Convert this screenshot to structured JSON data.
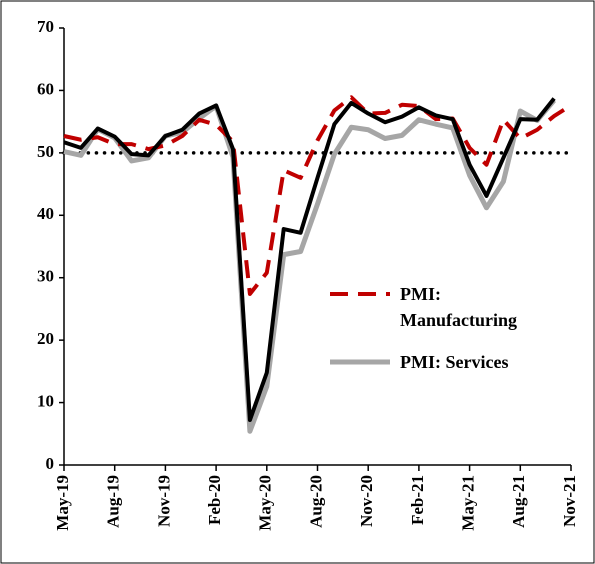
{
  "chart_data": {
    "type": "line",
    "categories": [
      "May-19",
      null,
      null,
      "Aug-19",
      null,
      null,
      "Nov-19",
      null,
      null,
      "Feb-20",
      null,
      null,
      "May-20",
      null,
      null,
      "Aug-20",
      null,
      null,
      "Nov-20",
      null,
      null,
      "Feb-21",
      null,
      null,
      "May-21",
      null,
      null,
      "Aug-21",
      null,
      null,
      "Nov-21"
    ],
    "series": [
      {
        "color": "#000000",
        "values": [
          51.7,
          50.8,
          53.9,
          52.6,
          49.8,
          49.6,
          52.7,
          53.7,
          56.3,
          57.6,
          50.6,
          7.2,
          14.8,
          37.8,
          37.2,
          46,
          54.6,
          58,
          56.3,
          54.9,
          55.8,
          57.3,
          56,
          55.4,
          48.1,
          43.1,
          49.2,
          55.4,
          55.3,
          58.7,
          null
        ]
      },
      {
        "name": "PMI: Manufacturing",
        "color": "#c00000",
        "dashed": true,
        "values": [
          52.7,
          52.1,
          52.5,
          51.4,
          51.4,
          50.6,
          51.2,
          52.7,
          55.3,
          54.5,
          51.8,
          27.4,
          30.8,
          47.2,
          46,
          52,
          56.8,
          58.9,
          56.3,
          56.4,
          57.7,
          57.5,
          55.4,
          55.5,
          50.8,
          48.1,
          55.3,
          52.3,
          53.7,
          55.9,
          57.6
        ]
      },
      {
        "name": "PMI: Services",
        "color": "#a6a6a6",
        "values": [
          50.2,
          49.6,
          53.8,
          52.4,
          48.7,
          49.2,
          52.7,
          53.3,
          55.5,
          57.5,
          49.3,
          5.4,
          12.6,
          33.7,
          34.2,
          41.8,
          49.8,
          54.1,
          53.7,
          52.3,
          52.8,
          55.3,
          54.6,
          54,
          46.4,
          41.2,
          45.4,
          56.7,
          55.2,
          58.4,
          null
        ]
      }
    ],
    "reference_line": 50,
    "ylim": [
      0,
      70
    ],
    "yticks": [
      0,
      10,
      20,
      30,
      40,
      50,
      60,
      70
    ]
  }
}
